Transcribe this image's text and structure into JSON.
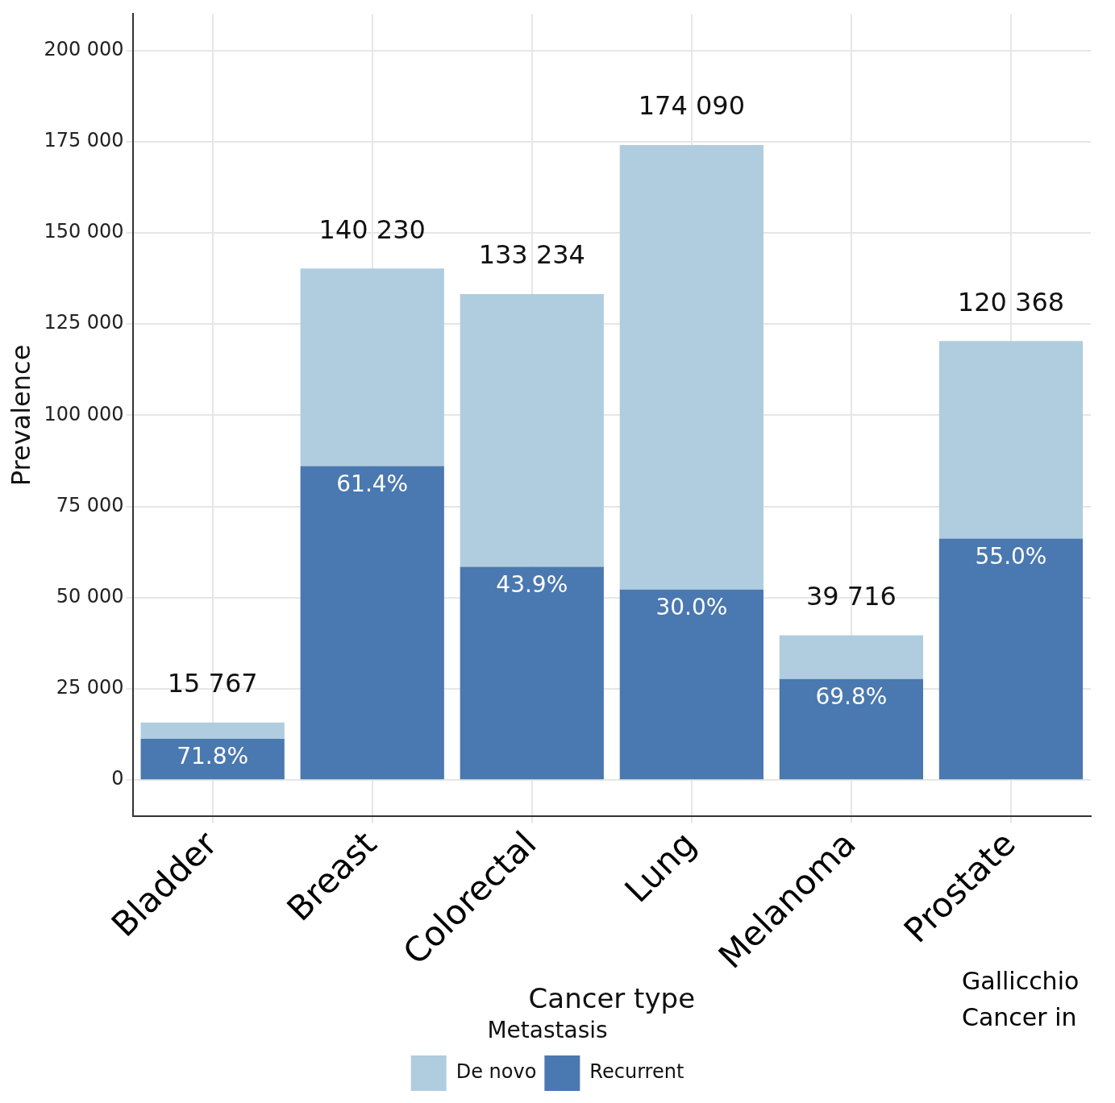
{
  "chart_data": {
    "type": "bar",
    "stacked": true,
    "xlabel": "Cancer type",
    "ylabel": "Prevalence",
    "legend_title": "Metastasis",
    "legend": "bottom",
    "grid": true,
    "categories": [
      "Bladder",
      "Breast",
      "Colorectal",
      "Lung",
      "Melanoma",
      "Prostate"
    ],
    "series": [
      {
        "name": "Recurrent",
        "color": "#4a78b0",
        "values": [
          11321,
          86101,
          58490,
          52227,
          27722,
          66202
        ]
      },
      {
        "name": "De novo",
        "color": "#b0cde0",
        "values": [
          4446,
          54129,
          74744,
          121863,
          11994,
          54166
        ]
      }
    ],
    "totals": [
      "15 767",
      "140 230",
      "133 234",
      "174 090",
      "39 716",
      "120 368"
    ],
    "ylim": [
      -10000,
      210000
    ],
    "yticks": [
      {
        "value": 0,
        "label": "0"
      },
      {
        "value": 25000,
        "label": "25 000"
      },
      {
        "value": 50000,
        "label": "50 000"
      },
      {
        "value": 75000,
        "label": "75 000"
      },
      {
        "value": 100000,
        "label": "100 000"
      },
      {
        "value": 125000,
        "label": "125 000"
      },
      {
        "value": 150000,
        "label": "150 000"
      },
      {
        "value": 175000,
        "label": "175 000"
      },
      {
        "value": 200000,
        "label": "200 000"
      }
    ],
    "annotations": [
      {
        "text": "71.8%",
        "x": "Bladder",
        "y": 11321
      },
      {
        "text": "61.4%",
        "x": "Breast",
        "y": 86101
      },
      {
        "text": "43.9%",
        "x": "Colorectal",
        "y": 58490
      },
      {
        "text": "30.0%",
        "x": "Lung",
        "y": 52227
      },
      {
        "text": "69.8%",
        "x": "Melanoma",
        "y": 27722
      },
      {
        "text": "55.0%",
        "x": "Prostate",
        "y": 66202
      },
      "Gallicchio",
      "Cancer in"
    ]
  }
}
